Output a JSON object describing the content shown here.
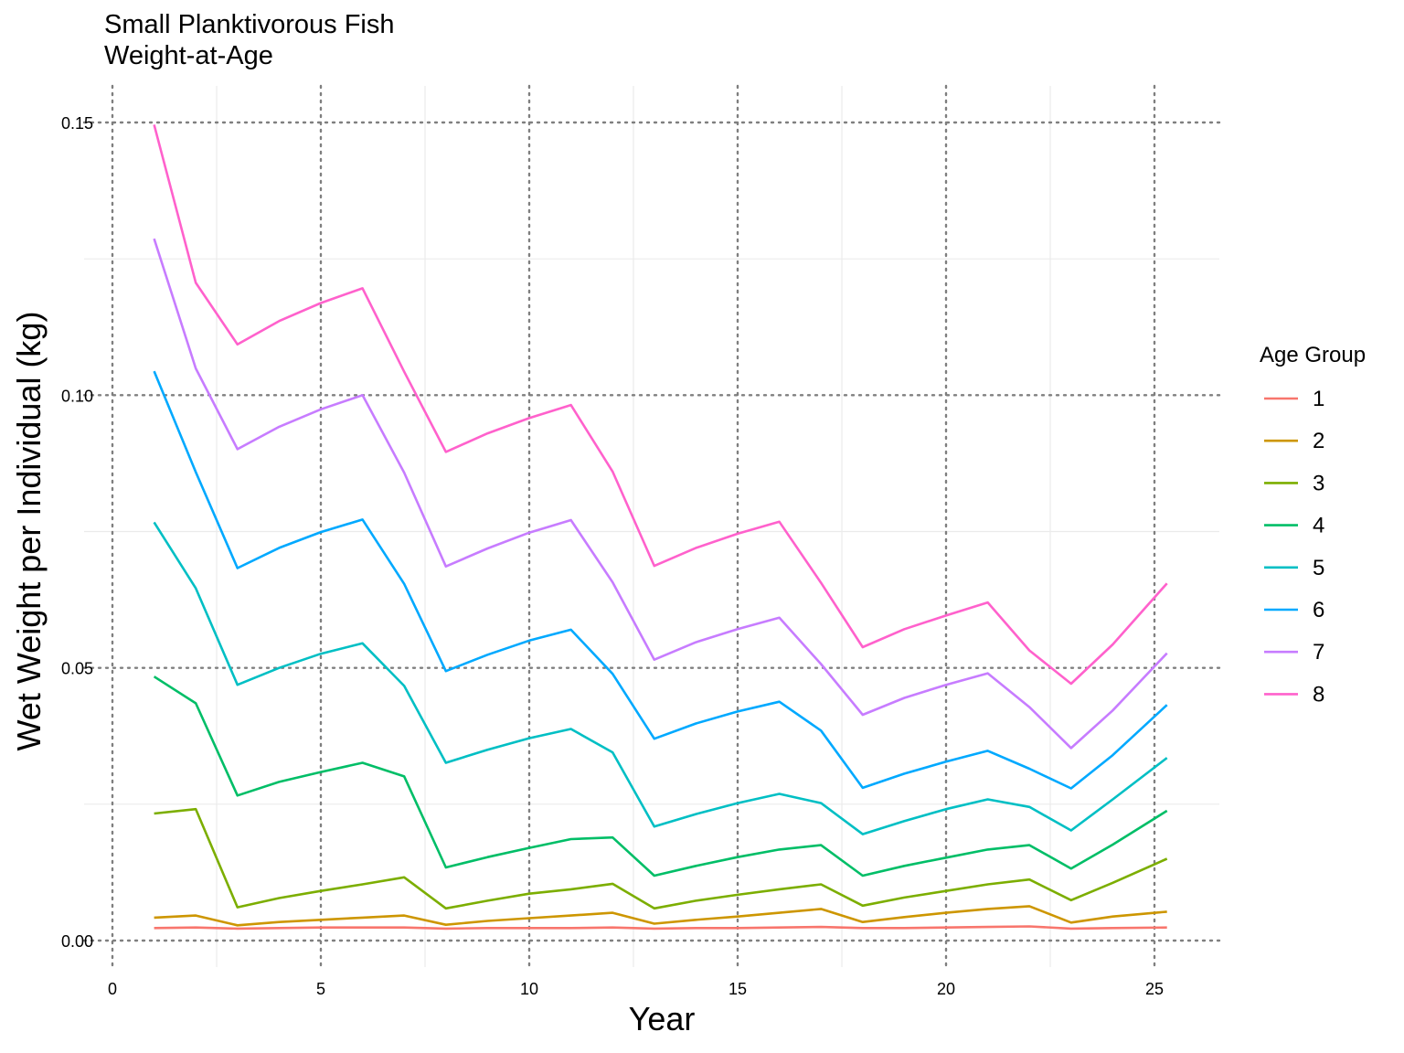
{
  "chart_data": {
    "type": "line",
    "title": "Small Planktivorous Fish",
    "subtitle": "Weight-at-Age",
    "xlabel": "Year",
    "ylabel": "Wet Weight per Individual (kg)",
    "xlim": [
      0,
      26.5
    ],
    "ylim": [
      -0.005,
      0.157
    ],
    "x_ticks": [
      0,
      5,
      10,
      15,
      20,
      25
    ],
    "x_tick_labels": [
      "0",
      "5",
      "10",
      "15",
      "20",
      "25"
    ],
    "y_ticks": [
      0,
      0.05,
      0.1,
      0.15
    ],
    "y_tick_labels": [
      "0.00",
      "0.05",
      "0.10",
      "0.15"
    ],
    "grid": "dotted major, light minor",
    "legend": {
      "title": "Age Group",
      "position": "right"
    },
    "x": [
      1,
      2,
      3,
      4,
      5,
      6,
      7,
      8,
      9,
      10,
      11,
      12,
      13,
      14,
      15,
      16,
      17,
      18,
      19,
      20,
      21,
      22,
      23,
      24,
      25.3
    ],
    "series": [
      {
        "name": "1",
        "color": "#F8766D",
        "values": [
          0.0023,
          0.0024,
          0.0022,
          0.0023,
          0.0024,
          0.0024,
          0.0024,
          0.0022,
          0.0023,
          0.0023,
          0.0023,
          0.0024,
          0.0022,
          0.0023,
          0.0023,
          0.0024,
          0.0025,
          0.0023,
          0.0023,
          0.0024,
          0.0025,
          0.0026,
          0.0022,
          0.0023,
          0.0024
        ]
      },
      {
        "name": "2",
        "color": "#CD9600",
        "values": [
          0.0042,
          0.0046,
          0.0028,
          0.0034,
          0.0038,
          0.0042,
          0.0046,
          0.0029,
          0.0036,
          0.0041,
          0.0046,
          0.0051,
          0.0031,
          0.0038,
          0.0044,
          0.0051,
          0.0058,
          0.0034,
          0.0043,
          0.0051,
          0.0058,
          0.0063,
          0.0033,
          0.0044,
          0.0053
        ]
      },
      {
        "name": "3",
        "color": "#7CAE00",
        "values": [
          0.0233,
          0.0241,
          0.0061,
          0.0078,
          0.0091,
          0.0103,
          0.0116,
          0.0059,
          0.0073,
          0.0086,
          0.0094,
          0.0104,
          0.0059,
          0.0073,
          0.0084,
          0.0094,
          0.0103,
          0.0064,
          0.0079,
          0.0091,
          0.0103,
          0.0112,
          0.0074,
          0.0106,
          0.015
        ]
      },
      {
        "name": "4",
        "color": "#00BE67",
        "values": [
          0.0484,
          0.0435,
          0.0266,
          0.0291,
          0.0309,
          0.0326,
          0.0301,
          0.0134,
          0.0153,
          0.017,
          0.0186,
          0.0189,
          0.0119,
          0.0137,
          0.0153,
          0.0167,
          0.0175,
          0.0119,
          0.0137,
          0.0152,
          0.0167,
          0.0175,
          0.0132,
          0.0176,
          0.0238
        ]
      },
      {
        "name": "5",
        "color": "#00BFC4",
        "values": [
          0.0767,
          0.0646,
          0.0469,
          0.05,
          0.0526,
          0.0545,
          0.0467,
          0.0326,
          0.035,
          0.0371,
          0.0388,
          0.0345,
          0.0209,
          0.0232,
          0.0252,
          0.0269,
          0.0252,
          0.0195,
          0.0219,
          0.0241,
          0.0259,
          0.0245,
          0.0202,
          0.0259,
          0.0335
        ]
      },
      {
        "name": "6",
        "color": "#00A9FF",
        "values": [
          0.1044,
          0.0859,
          0.0683,
          0.072,
          0.0749,
          0.0772,
          0.0654,
          0.0494,
          0.0524,
          0.055,
          0.057,
          0.0489,
          0.037,
          0.0398,
          0.042,
          0.0438,
          0.0385,
          0.028,
          0.0306,
          0.0328,
          0.0348,
          0.0315,
          0.0279,
          0.034,
          0.0432
        ]
      },
      {
        "name": "7",
        "color": "#C77CFF",
        "values": [
          0.1287,
          0.1049,
          0.0901,
          0.0942,
          0.0974,
          0.1,
          0.0858,
          0.0686,
          0.0719,
          0.0748,
          0.0771,
          0.0657,
          0.0515,
          0.0547,
          0.0571,
          0.0592,
          0.0507,
          0.0414,
          0.0445,
          0.0469,
          0.049,
          0.0428,
          0.0353,
          0.0422,
          0.0527
        ]
      },
      {
        "name": "8",
        "color": "#FF61CC",
        "values": [
          0.1496,
          0.1206,
          0.1093,
          0.1136,
          0.1169,
          0.1196,
          0.1043,
          0.0896,
          0.093,
          0.0958,
          0.0982,
          0.086,
          0.0687,
          0.072,
          0.0746,
          0.0768,
          0.0656,
          0.0538,
          0.0571,
          0.0596,
          0.062,
          0.0532,
          0.0471,
          0.0543,
          0.0655
        ]
      }
    ]
  }
}
